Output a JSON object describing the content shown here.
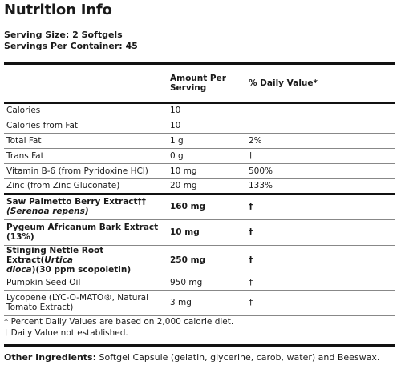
{
  "title": "Nutrition Info",
  "serving_size": "Serving Size: 2 Softgels",
  "servings_per_container": "Servings Per Container: 45",
  "headers": {
    "amount": "Amount Per Serving",
    "dv": "% Daily Value*"
  },
  "rows": [
    {
      "name": "Calories",
      "amount": "10",
      "dv": ""
    },
    {
      "name": "Calories from Fat",
      "amount": "10",
      "dv": ""
    },
    {
      "name": "Total Fat",
      "amount": "1 g",
      "dv": "2%"
    },
    {
      "name": "Trans Fat",
      "amount": "0 g",
      "dv": "†"
    },
    {
      "name": "Vitamin B-6 (from Pyridoxine HCl)",
      "amount": "10 mg",
      "dv": "500%"
    },
    {
      "name": "Zinc (from Zinc Gluconate)",
      "amount": "20 mg",
      "dv": "133%"
    },
    {
      "name_a": "Saw Palmetto Berry Extract††",
      "name_b": "(Serenoa repens)",
      "amount": "160 mg",
      "dv": "†"
    },
    {
      "name_a": "Pygeum Africanum Bark Extract",
      "name_b": "(13%)",
      "amount": "10 mg",
      "dv": "†"
    },
    {
      "name_a": "Stinging Nettle Root Extract(",
      "name_i1": "Urtica",
      "name_i2": "dioca",
      "name_b": ")(30 ppm scopoletin)",
      "amount": "250 mg",
      "dv": "†"
    },
    {
      "name": "Pumpkin Seed Oil",
      "amount": "950 mg",
      "dv": "†"
    },
    {
      "name_a": "Lycopene (LYC-O-MATO®,  Natural",
      "name_b": "Tomato Extract)",
      "amount": "3 mg",
      "dv": "†"
    }
  ],
  "footnotes": {
    "dv_note": "* Percent Daily Values are based on 2,000 calorie diet.",
    "dagger_note": "† Daily Value not established."
  },
  "other_ingredients": {
    "label": "Other Ingredients:",
    "text": " Softgel Capsule (gelatin, glycerine, carob, water) and Beeswax."
  }
}
